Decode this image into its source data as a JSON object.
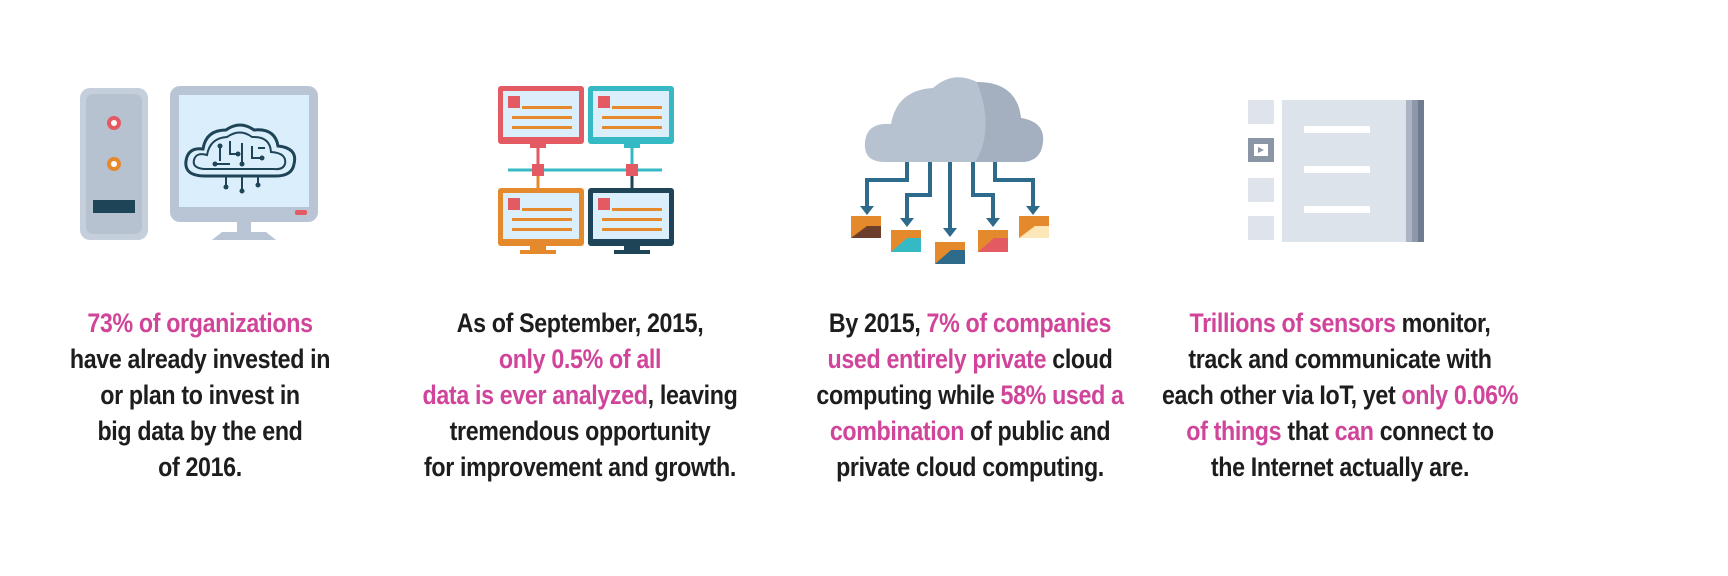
{
  "colors": {
    "highlight": "#d0449a",
    "text": "#1d1d1d",
    "server_gray": "#b9c4d4",
    "screen_blue": "#dbeefb",
    "red": "#e35a63",
    "teal": "#35b9c4",
    "orange": "#e58a2c",
    "navy": "#1e4457",
    "cloud_gray": "#b7c2d1"
  },
  "panels": [
    {
      "icon": "server-monitor-cloud-icon",
      "lines": [
        [
          {
            "t": "73% of organizations",
            "h": true
          }
        ],
        [
          {
            "t": "have already invested in",
            "h": false
          }
        ],
        [
          {
            "t": "or plan to invest in",
            "h": false
          }
        ],
        [
          {
            "t": "big data by the end",
            "h": false
          }
        ],
        [
          {
            "t": "of 2016.",
            "h": false
          }
        ]
      ]
    },
    {
      "icon": "networked-monitors-icon",
      "lines": [
        [
          {
            "t": "As of September, 2015,",
            "h": false
          }
        ],
        [
          {
            "t": "only 0.5% of all",
            "h": true
          }
        ],
        [
          {
            "t": "data is ever analyzed",
            "h": true
          },
          {
            "t": ", leaving",
            "h": false
          }
        ],
        [
          {
            "t": "tremendous opportunity",
            "h": false
          }
        ],
        [
          {
            "t": "for improvement and growth.",
            "h": false
          }
        ]
      ]
    },
    {
      "icon": "cloud-folders-icon",
      "lines": [
        [
          {
            "t": "By 2015, ",
            "h": false
          },
          {
            "t": "7% of companies",
            "h": true
          }
        ],
        [
          {
            "t": "used entirely private",
            "h": true
          },
          {
            "t": " cloud",
            "h": false
          }
        ],
        [
          {
            "t": "computing while ",
            "h": false
          },
          {
            "t": "58% used a",
            "h": true
          }
        ],
        [
          {
            "t": "combination",
            "h": true
          },
          {
            "t": " of public and",
            "h": false
          }
        ],
        [
          {
            "t": "private cloud computing.",
            "h": false
          }
        ]
      ]
    },
    {
      "icon": "document-stack-icon",
      "lines": [
        [
          {
            "t": "Trillions of sensors",
            "h": true
          },
          {
            "t": " monitor,",
            "h": false
          }
        ],
        [
          {
            "t": "track and communicate with",
            "h": false
          }
        ],
        [
          {
            "t": "each other via IoT, yet ",
            "h": false
          },
          {
            "t": "only 0.06%",
            "h": true
          }
        ],
        [
          {
            "t": "of things",
            "h": true
          },
          {
            "t": " that ",
            "h": false
          },
          {
            "t": "can",
            "h": true
          },
          {
            "t": " connect to",
            "h": false
          }
        ],
        [
          {
            "t": "the Internet actually are.",
            "h": false
          }
        ]
      ]
    }
  ]
}
